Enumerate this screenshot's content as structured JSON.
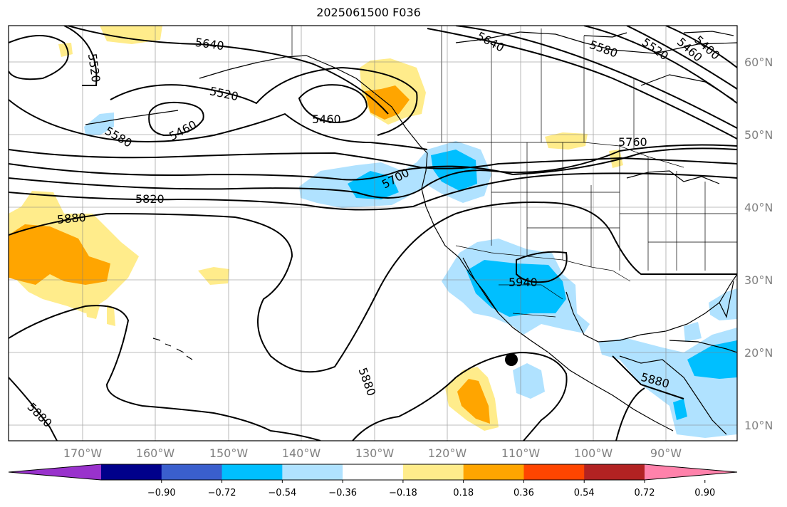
{
  "title": "2025061500 F036",
  "lat_labels": [
    "60°N",
    "50°N",
    "40°N",
    "30°N",
    "20°N",
    "10°N"
  ],
  "lon_labels": [
    "170°W",
    "160°W",
    "150°W",
    "140°W",
    "130°W",
    "120°W",
    "110°W",
    "100°W",
    "90°W"
  ],
  "contour_labels": [
    "5640",
    "5520",
    "5520",
    "5460",
    "5460",
    "5580",
    "5700",
    "5820",
    "5880",
    "5880",
    "5880",
    "5940",
    "5760",
    "5640",
    "5580",
    "5520",
    "5460",
    "5400",
    "5880"
  ],
  "colorbar": {
    "tick_labels": [
      "−0.90",
      "−0.72",
      "−0.54",
      "−0.36",
      "−0.18",
      "0.18",
      "0.36",
      "0.54",
      "0.72",
      "0.90"
    ],
    "colors": [
      "#9932cc",
      "#00008b",
      "#3a5fcd",
      "#00bfff",
      "#b0e2ff",
      "#ffffff",
      "#ffec8b",
      "#ffa500",
      "#ff4500",
      "#b22222",
      "#ff82ab"
    ]
  },
  "colors": {
    "land": "#000000",
    "grid": "#808080",
    "contour": "#000000"
  },
  "marker": "black-dot"
}
